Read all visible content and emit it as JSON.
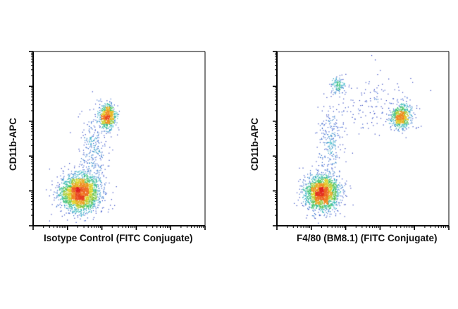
{
  "chart_data": [
    {
      "type": "scatter",
      "xlabel": "Isotype Control (FITC Conjugate)",
      "ylabel": "CD11b-APC",
      "xscale": "log",
      "yscale": "log",
      "xlim": [
        1,
        100000
      ],
      "ylim": [
        1,
        100000
      ],
      "populations": [
        {
          "center_log": [
            1.35,
            0.95
          ],
          "spread_log": [
            0.28,
            0.26
          ],
          "count": 2400,
          "density": "high"
        },
        {
          "center_log": [
            2.15,
            3.15
          ],
          "spread_log": [
            0.12,
            0.17
          ],
          "count": 700,
          "density": "medium"
        },
        {
          "center_log": [
            1.75,
            2.05
          ],
          "spread_log": [
            0.2,
            0.6
          ],
          "count": 320,
          "density": "low"
        }
      ],
      "colormap": [
        "#1a1aa8",
        "#3a5fd0",
        "#2fb3c4",
        "#33c060",
        "#e0d020",
        "#f08020",
        "#e02020"
      ]
    },
    {
      "type": "scatter",
      "xlabel": "F4/80 (BM8.1) (FITC Conjugate)",
      "ylabel": "CD11b-APC",
      "xscale": "log",
      "yscale": "log",
      "xlim": [
        1,
        100000
      ],
      "ylim": [
        1,
        100000
      ],
      "populations": [
        {
          "center_log": [
            1.3,
            0.95
          ],
          "spread_log": [
            0.25,
            0.25
          ],
          "count": 2000,
          "density": "high"
        },
        {
          "center_log": [
            3.6,
            3.15
          ],
          "spread_log": [
            0.14,
            0.17
          ],
          "count": 650,
          "density": "medium"
        },
        {
          "center_log": [
            1.75,
            4.05
          ],
          "spread_log": [
            0.1,
            0.12
          ],
          "count": 120,
          "density": "low"
        },
        {
          "center_log": [
            1.55,
            2.3
          ],
          "spread_log": [
            0.17,
            0.55
          ],
          "count": 260,
          "density": "low"
        },
        {
          "center_log": [
            2.8,
            3.5
          ],
          "spread_log": [
            0.6,
            0.45
          ],
          "count": 160,
          "density": "low"
        }
      ],
      "colormap": [
        "#1a1aa8",
        "#3a5fd0",
        "#2fb3c4",
        "#33c060",
        "#e0d020",
        "#f08020",
        "#e02020"
      ]
    }
  ]
}
